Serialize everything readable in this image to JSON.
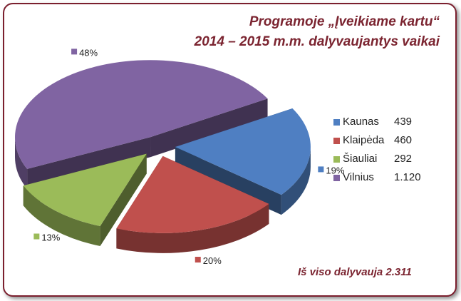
{
  "title_line1": "Programoje „Įveikiame kartu“",
  "title_line2": "2014 – 2015 m.m. dalyvaujantys vaikai",
  "total_text": "Iš viso dalyvauja 2.311",
  "chart_data": {
    "type": "pie",
    "title": "Programoje „Įveikiame kartu“ 2014 – 2015 m.m. dalyvaujantys vaikai",
    "legend_position": "right",
    "slices": [
      {
        "name": "Kaunas",
        "value": 439,
        "value_label": "439",
        "percent_label": "19%",
        "color": "#4f7fc2"
      },
      {
        "name": "Klaipėda",
        "value": 460,
        "value_label": "460",
        "percent_label": "20%",
        "color": "#c0504d"
      },
      {
        "name": "Šiauliai",
        "value": 292,
        "value_label": "292",
        "percent_label": "13%",
        "color": "#9bbb59"
      },
      {
        "name": "Vilnius",
        "value": 1120,
        "value_label": "1.120",
        "percent_label": "48%",
        "color": "#8064a2"
      }
    ]
  }
}
